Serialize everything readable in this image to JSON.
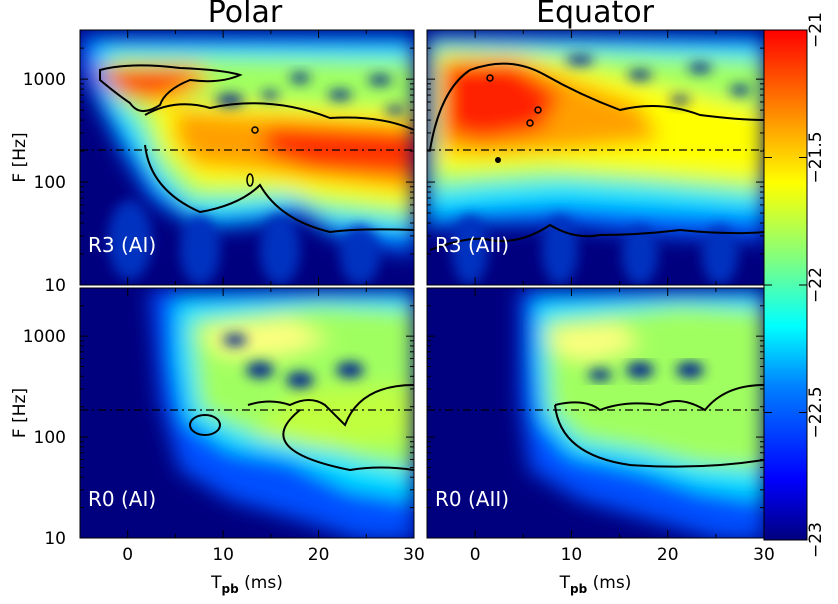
{
  "chart_data": {
    "type": "heatmap",
    "columns": [
      "Polar",
      "Equator"
    ],
    "x_ticks": [
      "0",
      "10",
      "20",
      "30"
    ],
    "xlim": [
      -5,
      30
    ],
    "x_label_main": "T",
    "x_label_sub": "pb",
    "x_label_unit": "(ms)",
    "y_label": "F [Hz]",
    "y_scale": "log",
    "ylim": [
      10,
      3000
    ],
    "y_ticks": [
      "10",
      "100",
      "1000"
    ],
    "reference_line_hz": 200,
    "colorbar": {
      "range": [
        -23,
        -21
      ],
      "ticks": [
        "−21",
        "−21.5",
        "−22",
        "−22.5",
        "−23"
      ],
      "colormap": [
        "#00007f",
        "#0000ff",
        "#0080ff",
        "#00ffff",
        "#80ff80",
        "#ffff00",
        "#ff8000",
        "#ff0000"
      ]
    },
    "panels": [
      {
        "label": "R3 (AI)",
        "row": 0,
        "col": 0
      },
      {
        "label": "R3 (AII)",
        "row": 0,
        "col": 1
      },
      {
        "label": "R0 (AI)",
        "row": 1,
        "col": 0
      },
      {
        "label": "R0 (AII)",
        "row": 1,
        "col": 1
      }
    ]
  }
}
